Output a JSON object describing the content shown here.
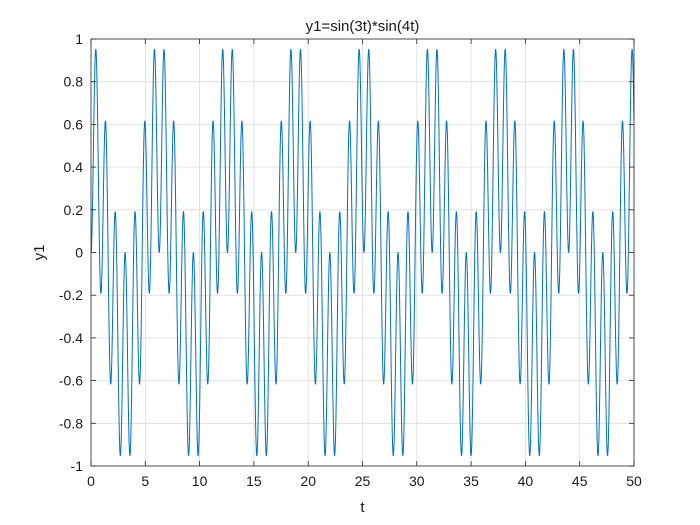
{
  "chart_data": {
    "type": "line",
    "title": "y1=sin(3t)*sin(4t)",
    "xlabel": "t",
    "ylabel": "y1",
    "xlim": [
      0,
      50
    ],
    "ylim": [
      -1,
      1
    ],
    "grid": true,
    "x_ticks": [
      0,
      5,
      10,
      15,
      20,
      25,
      30,
      35,
      40,
      45,
      50
    ],
    "y_ticks": [
      -1,
      -0.8,
      -0.6,
      -0.4,
      -0.2,
      0,
      0.2,
      0.4,
      0.6,
      0.8,
      1
    ],
    "x_tick_labels": [
      "0",
      "5",
      "10",
      "15",
      "20",
      "25",
      "30",
      "35",
      "40",
      "45",
      "50"
    ],
    "y_tick_labels": [
      "-1",
      "-0.8",
      "-0.6",
      "-0.4",
      "-0.2",
      "0",
      "0.2",
      "0.4",
      "0.6",
      "0.8",
      "1"
    ],
    "series": [
      {
        "function": "y1=sin(3t)*sin(4t)",
        "t_start": 0,
        "t_end": 50,
        "color": "#0072bd"
      }
    ]
  }
}
